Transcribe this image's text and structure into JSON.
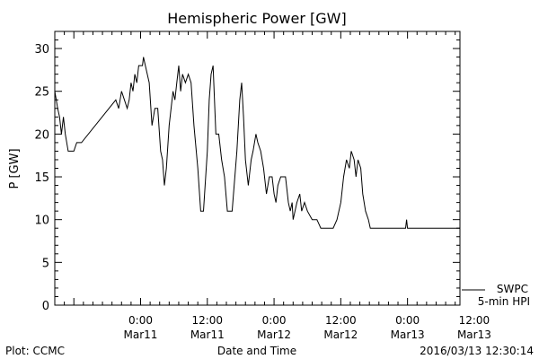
{
  "chart_data": {
    "type": "line",
    "title": "Hemispheric Power [GW]",
    "ylabel": "P [GW]",
    "xlabel": "Date and Time",
    "ylim": [
      0,
      32
    ],
    "xlim": [
      -9,
      33.5
    ],
    "y_ticks": [
      0,
      5,
      10,
      15,
      20,
      25,
      30
    ],
    "x_ticks": [
      {
        "t": 0,
        "line1": "0:00",
        "line2": "Mar11"
      },
      {
        "t": 7,
        "line1": "12:00",
        "line2": "Mar11"
      },
      {
        "t": 14,
        "line1": "0:00",
        "line2": "Mar12"
      },
      {
        "t": 21,
        "line1": "12:00",
        "line2": "Mar12"
      },
      {
        "t": 28,
        "line1": "0:00",
        "line2": "Mar13"
      },
      {
        "t": 35,
        "line1": "12:00",
        "line2": "Mar13"
      }
    ],
    "legend": {
      "line1": "SWPC",
      "line2": "5-min HPI",
      "position": "bottom-right outside plot"
    },
    "series": [
      {
        "name": "SWPC 5-min HPI",
        "color": "#000000",
        "points": [
          [
            -9.0,
            25
          ],
          [
            -8.7,
            23
          ],
          [
            -8.5,
            22
          ],
          [
            -8.3,
            20
          ],
          [
            -8.1,
            22
          ],
          [
            -7.9,
            20
          ],
          [
            -7.6,
            18
          ],
          [
            -7.0,
            18
          ],
          [
            -6.7,
            19
          ],
          [
            -6.2,
            19
          ],
          [
            -2.6,
            24
          ],
          [
            -2.3,
            23
          ],
          [
            -2.0,
            25
          ],
          [
            -1.7,
            24
          ],
          [
            -1.4,
            23
          ],
          [
            -1.2,
            24
          ],
          [
            -1.0,
            26
          ],
          [
            -0.8,
            25
          ],
          [
            -0.6,
            27
          ],
          [
            -0.4,
            26
          ],
          [
            -0.2,
            28
          ],
          [
            0.2,
            28
          ],
          [
            0.3,
            29
          ],
          [
            0.5,
            28
          ],
          [
            0.9,
            26
          ],
          [
            1.2,
            21
          ],
          [
            1.5,
            23
          ],
          [
            1.8,
            23
          ],
          [
            2.1,
            18
          ],
          [
            2.3,
            17
          ],
          [
            2.5,
            14
          ],
          [
            2.7,
            16
          ],
          [
            3.0,
            21
          ],
          [
            3.4,
            25
          ],
          [
            3.6,
            24
          ],
          [
            3.8,
            26
          ],
          [
            4.0,
            28
          ],
          [
            4.2,
            25
          ],
          [
            4.4,
            27
          ],
          [
            4.7,
            26
          ],
          [
            5.0,
            27
          ],
          [
            5.3,
            26
          ],
          [
            5.6,
            21
          ],
          [
            6.0,
            16
          ],
          [
            6.3,
            11
          ],
          [
            6.6,
            11
          ],
          [
            7.0,
            18
          ],
          [
            7.2,
            24
          ],
          [
            7.4,
            27
          ],
          [
            7.6,
            28
          ],
          [
            7.9,
            20
          ],
          [
            8.2,
            20
          ],
          [
            8.5,
            17
          ],
          [
            8.8,
            15
          ],
          [
            9.1,
            11
          ],
          [
            9.6,
            11
          ],
          [
            10.1,
            18
          ],
          [
            10.4,
            24
          ],
          [
            10.6,
            26
          ],
          [
            10.8,
            22
          ],
          [
            11.0,
            17
          ],
          [
            11.3,
            14
          ],
          [
            11.6,
            17
          ],
          [
            11.8,
            18
          ],
          [
            12.1,
            20
          ],
          [
            12.3,
            19
          ],
          [
            12.6,
            18
          ],
          [
            12.9,
            16
          ],
          [
            13.2,
            13
          ],
          [
            13.5,
            15
          ],
          [
            13.8,
            15
          ],
          [
            14.0,
            13
          ],
          [
            14.2,
            12
          ],
          [
            14.4,
            14
          ],
          [
            14.7,
            15
          ],
          [
            15.2,
            15
          ],
          [
            15.5,
            12
          ],
          [
            15.7,
            11
          ],
          [
            15.9,
            12
          ],
          [
            16.0,
            10
          ],
          [
            16.2,
            11
          ],
          [
            16.4,
            12
          ],
          [
            16.7,
            13
          ],
          [
            16.9,
            11
          ],
          [
            17.2,
            12
          ],
          [
            17.5,
            11
          ],
          [
            18.0,
            10
          ],
          [
            18.5,
            10
          ],
          [
            18.9,
            9
          ],
          [
            20.2,
            9
          ],
          [
            20.6,
            10
          ],
          [
            21.0,
            12
          ],
          [
            21.3,
            15
          ],
          [
            21.6,
            17
          ],
          [
            21.9,
            16
          ],
          [
            22.1,
            18
          ],
          [
            22.4,
            17
          ],
          [
            22.6,
            15
          ],
          [
            22.8,
            17
          ],
          [
            23.1,
            16
          ],
          [
            23.3,
            13
          ],
          [
            23.6,
            11
          ],
          [
            23.9,
            10
          ],
          [
            24.1,
            9
          ],
          [
            27.8,
            9
          ],
          [
            27.9,
            10
          ],
          [
            28.0,
            9
          ],
          [
            33.5,
            9
          ]
        ]
      }
    ]
  },
  "footer": {
    "left": "Plot: CCMC",
    "right": "2016/03/13 12:30:14"
  }
}
